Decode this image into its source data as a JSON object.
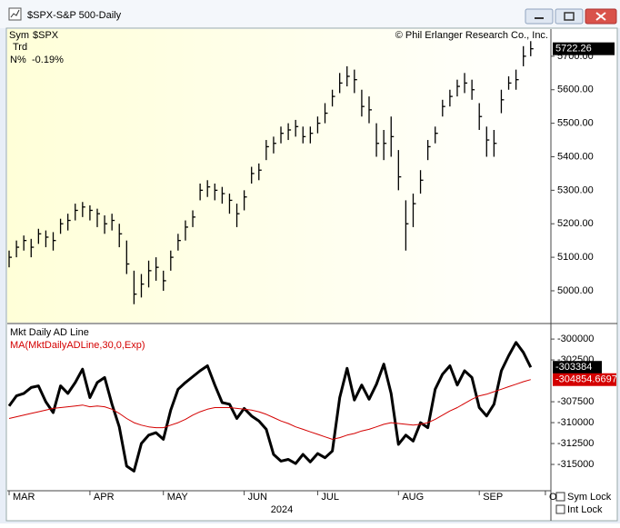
{
  "window": {
    "title": "$SPX-S&P 500-Daily"
  },
  "info": {
    "sym_label": "Sym",
    "sym": "$SPX",
    "trd_label": "Trd",
    "n_label": "N%",
    "n_value": "-0.19%"
  },
  "copyright": "© Phil Erlanger Research Co., Inc.",
  "controls": {
    "sym_lock": "Sym Lock",
    "int_lock": "Int Lock"
  },
  "chart_data": [
    {
      "type": "ohlc",
      "ylim": [
        4905,
        5781
      ],
      "yticks": [
        {
          "value": 5000,
          "label": "5000.00"
        },
        {
          "value": 5100,
          "label": "5100.00"
        },
        {
          "value": 5200,
          "label": "5200.00"
        },
        {
          "value": 5300,
          "label": "5300.00"
        },
        {
          "value": 5400,
          "label": "5400.00"
        },
        {
          "value": 5500,
          "label": "5500.00"
        },
        {
          "value": 5600,
          "label": "5600.00"
        },
        {
          "value": 5700,
          "label": "5700.00"
        }
      ],
      "color": "#000000",
      "high": [
        5120,
        5150,
        5165,
        5155,
        5185,
        5180,
        5175,
        5215,
        5230,
        5260,
        5265,
        5255,
        5245,
        5225,
        5230,
        5200,
        5150,
        5060,
        5050,
        5090,
        5100,
        5060,
        5120,
        5170,
        5210,
        5240,
        5320,
        5330,
        5320,
        5310,
        5290,
        5260,
        5300,
        5370,
        5380,
        5450,
        5460,
        5490,
        5500,
        5510,
        5490,
        5490,
        5520,
        5560,
        5600,
        5650,
        5670,
        5660,
        5600,
        5580,
        5500,
        5480,
        5520,
        5420,
        5270,
        5290,
        5360,
        5450,
        5490,
        5570,
        5600,
        5630,
        5650,
        5630,
        5560,
        5490,
        5480,
        5600,
        5640,
        5660,
        5730,
        5745
      ],
      "low": [
        5070,
        5100,
        5120,
        5100,
        5140,
        5130,
        5120,
        5170,
        5180,
        5210,
        5220,
        5210,
        5190,
        5170,
        5180,
        5130,
        5050,
        4960,
        4980,
        5010,
        5030,
        5000,
        5060,
        5120,
        5150,
        5190,
        5270,
        5280,
        5270,
        5260,
        5230,
        5190,
        5240,
        5320,
        5330,
        5390,
        5410,
        5440,
        5450,
        5460,
        5440,
        5440,
        5470,
        5500,
        5550,
        5590,
        5610,
        5590,
        5520,
        5500,
        5400,
        5390,
        5400,
        5300,
        5120,
        5190,
        5290,
        5390,
        5440,
        5520,
        5550,
        5580,
        5590,
        5570,
        5480,
        5400,
        5400,
        5530,
        5600,
        5600,
        5670,
        5700
      ],
      "close": [
        5100,
        5130,
        5150,
        5130,
        5170,
        5160,
        5150,
        5200,
        5210,
        5240,
        5250,
        5240,
        5230,
        5200,
        5210,
        5170,
        5080,
        4990,
        5020,
        5060,
        5070,
        5030,
        5100,
        5150,
        5190,
        5220,
        5300,
        5310,
        5300,
        5290,
        5270,
        5230,
        5280,
        5350,
        5360,
        5430,
        5440,
        5470,
        5480,
        5490,
        5460,
        5470,
        5500,
        5530,
        5580,
        5620,
        5640,
        5630,
        5550,
        5540,
        5440,
        5440,
        5460,
        5340,
        5200,
        5260,
        5330,
        5430,
        5470,
        5550,
        5580,
        5610,
        5620,
        5600,
        5520,
        5450,
        5440,
        5570,
        5620,
        5630,
        5700,
        5722.26
      ]
    },
    {
      "type": "line",
      "title": "Mkt Daily AD Line",
      "ylim": [
        -318150,
        -298250
      ],
      "yticks": [
        -300000,
        -302500,
        -307500,
        -310000,
        -312500,
        -315000
      ],
      "categories": [
        "MAR",
        null,
        null,
        null,
        null,
        null,
        null,
        null,
        null,
        null,
        null,
        "APR",
        null,
        null,
        null,
        null,
        null,
        null,
        null,
        null,
        null,
        "MAY",
        null,
        null,
        null,
        null,
        null,
        null,
        null,
        null,
        null,
        null,
        "JUN",
        null,
        null,
        null,
        null,
        null,
        null,
        null,
        null,
        null,
        "JUL",
        null,
        null,
        null,
        null,
        null,
        null,
        null,
        null,
        null,
        null,
        "AUG",
        null,
        null,
        null,
        null,
        null,
        null,
        null,
        null,
        null,
        null,
        "SEP",
        null,
        null,
        null,
        null,
        null,
        null,
        null,
        null,
        "O"
      ],
      "x_year": "2024",
      "series": [
        {
          "name": "Mkt Daily AD Line",
          "color": "#000000",
          "values": [
            -308000,
            -306800,
            -306500,
            -305800,
            -305600,
            -307500,
            -308800,
            -305600,
            -306500,
            -305200,
            -303600,
            -307000,
            -305200,
            -304600,
            -307800,
            -310500,
            -315200,
            -315800,
            -312500,
            -311500,
            -311200,
            -312000,
            -308500,
            -306000,
            -305200,
            -304500,
            -303800,
            -303200,
            -305500,
            -307600,
            -307800,
            -309500,
            -308300,
            -309200,
            -309800,
            -310800,
            -313800,
            -314600,
            -314400,
            -314900,
            -313800,
            -314700,
            -313700,
            -314200,
            -313400,
            -307000,
            -303500,
            -307300,
            -305500,
            -307200,
            -305400,
            -303000,
            -306500,
            -312600,
            -311500,
            -312200,
            -310000,
            -310600,
            -306000,
            -304200,
            -303200,
            -305500,
            -303800,
            -304600,
            -308200,
            -309200,
            -307800,
            -303800,
            -302000,
            -300400,
            -301600,
            -303384,
            null,
            null
          ]
        },
        {
          "name": "MA(MktDailyADLine,30,0,Exp)",
          "color": "#d40000",
          "values": [
            -309500,
            -309300,
            -309100,
            -308900,
            -308700,
            -308500,
            -308300,
            -308200,
            -308100,
            -308000,
            -307900,
            -308100,
            -308000,
            -308100,
            -308400,
            -308900,
            -309500,
            -310000,
            -310300,
            -310500,
            -310600,
            -310600,
            -310300,
            -310000,
            -309600,
            -309100,
            -308700,
            -308400,
            -308200,
            -308200,
            -308200,
            -308300,
            -308400,
            -308500,
            -308700,
            -309000,
            -309400,
            -309800,
            -310100,
            -310500,
            -310800,
            -311100,
            -311400,
            -311700,
            -312000,
            -311800,
            -311500,
            -311300,
            -311000,
            -310800,
            -310500,
            -310200,
            -310000,
            -310100,
            -310200,
            -310300,
            -310200,
            -310000,
            -309600,
            -309100,
            -308600,
            -308200,
            -307700,
            -307200,
            -306800,
            -306600,
            -306300,
            -306000,
            -305700,
            -305400,
            -305100,
            -304854.6697,
            null,
            null
          ]
        }
      ]
    }
  ]
}
